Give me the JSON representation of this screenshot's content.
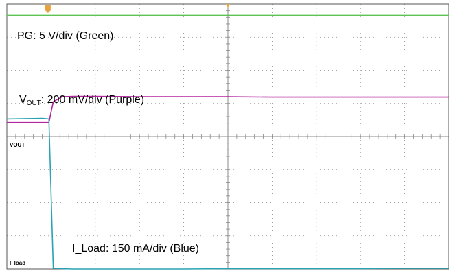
{
  "chart_data": {
    "type": "line",
    "title": "",
    "xlabel": "",
    "ylabel": "",
    "grid": true,
    "divisions": {
      "x": 10,
      "y": 8
    },
    "background": "#ffffff",
    "grid_color": "#888888",
    "x": [
      0,
      0.8,
      0.95,
      1.05,
      1.25,
      1.5,
      2,
      3,
      4,
      5,
      6,
      7,
      8,
      9,
      10
    ],
    "series": [
      {
        "name": "PG",
        "color": "#5dc352",
        "y": [
          7.66,
          7.66,
          7.66,
          7.66,
          7.66,
          7.66,
          7.66,
          7.66,
          7.66,
          7.66,
          7.66,
          7.66,
          7.66,
          7.66,
          7.66
        ]
      },
      {
        "name": "VOUT",
        "color": "#b3249f",
        "y": [
          4.42,
          4.42,
          4.42,
          5.05,
          5.2,
          5.21,
          5.21,
          5.2,
          5.2,
          5.2,
          5.19,
          5.19,
          5.19,
          5.19,
          5.19
        ]
      },
      {
        "name": "I_load",
        "color": "#29a3b3",
        "y": [
          4.53,
          4.55,
          4.53,
          0.02,
          0.01,
          0.0,
          0.0,
          0.0,
          0.0,
          0.01,
          0.01,
          0.01,
          0.01,
          0.02,
          0.02
        ]
      }
    ],
    "annotations": {
      "pg": "PG: 5 V/div (Green)",
      "vout_prefix": "V",
      "vout_sub": "OUT",
      "vout_rest": ": 200 mV/div (Purple)",
      "iload": "I_Load: 150 mA/div (Blue)"
    },
    "channel_markers": {
      "vout": "VOUT",
      "iload": "I_load"
    },
    "trigger_color": "#e6a23c"
  }
}
